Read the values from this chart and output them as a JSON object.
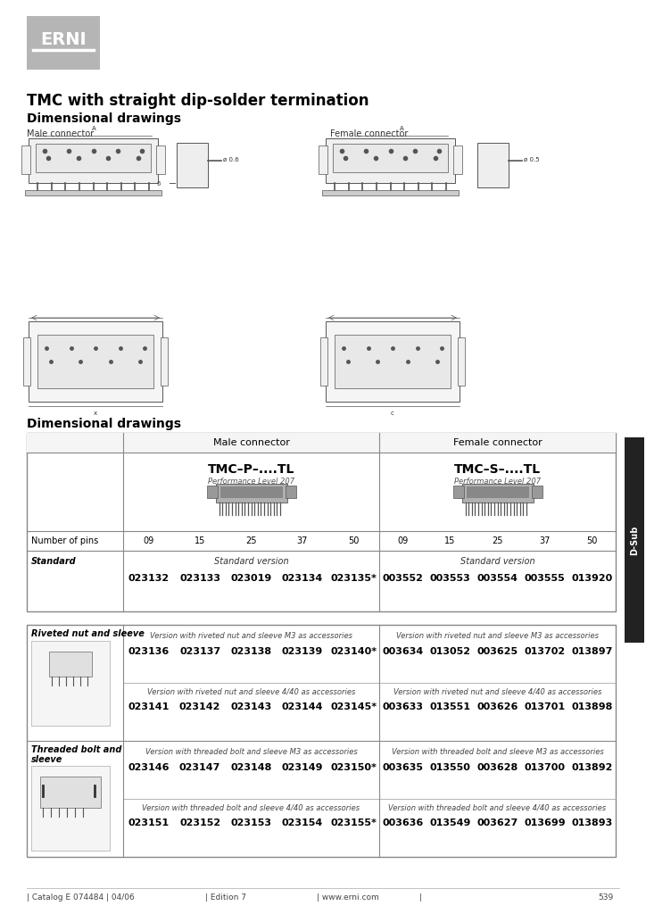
{
  "title": "TMC with straight dip-solder termination",
  "section1_title": "Dimensional drawings",
  "male_connector_label": "Male connector",
  "female_connector_label": "Female connector",
  "section2_title": "Dimensional drawings",
  "logo_text": "ERNI",
  "dsub_label": "D-Sub",
  "table1": {
    "model_male": "TMC–P–....TL",
    "perf_male": "Performance Level 207",
    "model_female": "TMC–S–....TL",
    "perf_female": "Performance Level 207",
    "pin_label": "Number of pins",
    "pins": [
      "09",
      "15",
      "25",
      "37",
      "50"
    ],
    "standard_label": "Standard",
    "standard_version": "Standard version",
    "male_codes": [
      "023132",
      "023133",
      "023019",
      "023134",
      "023135*"
    ],
    "female_codes": [
      "003552",
      "003553",
      "003554",
      "003555",
      "013920"
    ]
  },
  "table2": {
    "row1_header_line1": "Riveted nut and sleeve",
    "row1_desc_m3_male": "Version with riveted nut and sleeve M3 as accessories",
    "row1_desc_m3_female": "Version with riveted nut and sleeve M3 as accessories",
    "row1_codes_m3_male": [
      "023136",
      "023137",
      "023138",
      "023139",
      "023140*"
    ],
    "row1_codes_m3_female": [
      "003634",
      "013052",
      "003625",
      "013702",
      "013897"
    ],
    "row1_desc_440_male": "Version with riveted nut and sleeve 4/40 as accessories",
    "row1_desc_440_female": "Version with riveted nut and sleeve 4/40 as accessories",
    "row1_codes_440_male": [
      "023141",
      "023142",
      "023143",
      "023144",
      "023145*"
    ],
    "row1_codes_440_female": [
      "003633",
      "013551",
      "003626",
      "013701",
      "013898"
    ],
    "row2_header_line1": "Threaded bolt and",
    "row2_header_line2": "sleeve",
    "row2_desc_m3_male": "Version with threaded bolt and sleeve M3 as accessories",
    "row2_desc_m3_female": "Version with threaded bolt and sleeve M3 as accessories",
    "row2_codes_m3_male": [
      "023146",
      "023147",
      "023148",
      "023149",
      "023150*"
    ],
    "row2_codes_m3_female": [
      "003635",
      "013550",
      "003628",
      "013700",
      "013892"
    ],
    "row2_desc_440_male": "Version with threaded bolt and sleeve 4/40 as accessories",
    "row2_desc_440_female": "Version with threaded bolt and sleeve 4/40 as accessories",
    "row2_codes_440_male": [
      "023151",
      "023152",
      "023153",
      "023154",
      "023155*"
    ],
    "row2_codes_440_female": [
      "003636",
      "013549",
      "003627",
      "013699",
      "013893"
    ]
  },
  "footer_catalog": "| Catalog E 074484 | 04/06",
  "footer_edition": "| Edition 7",
  "footer_web": "| www.erni.com",
  "footer_pipe": "|",
  "footer_page": "539"
}
